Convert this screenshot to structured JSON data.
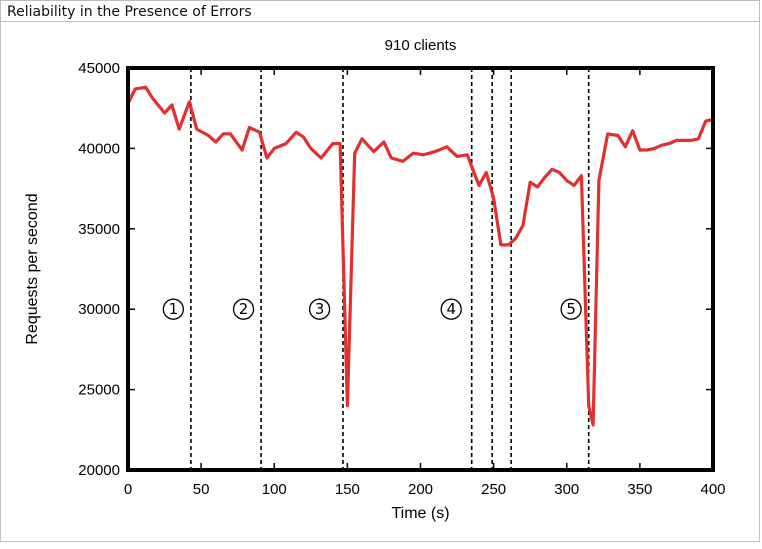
{
  "window": {
    "title": "Reliability in the Presence of Errors"
  },
  "chart_data": {
    "type": "line",
    "title": "910 clients",
    "xlabel": "Time (s)",
    "ylabel": "Requests per second",
    "xlim": [
      0,
      400
    ],
    "ylim": [
      20000,
      45000
    ],
    "xticks": [
      0,
      50,
      100,
      150,
      200,
      250,
      300,
      350,
      400
    ],
    "yticks": [
      20000,
      25000,
      30000,
      35000,
      40000,
      45000
    ],
    "grid": false,
    "series_color": "#e03030",
    "series": [
      {
        "x": [
          0,
          5,
          12,
          17,
          25,
          30,
          35,
          42,
          47,
          55,
          60,
          65,
          70,
          78,
          83,
          90,
          95,
          100,
          108,
          115,
          120,
          125,
          132,
          140,
          145,
          150,
          155,
          160,
          168,
          175,
          180,
          188,
          195,
          202,
          210,
          218,
          225,
          232,
          240,
          245,
          250,
          255,
          260,
          265,
          270,
          275,
          280,
          285,
          290,
          295,
          300,
          305,
          310,
          315,
          318,
          322,
          328,
          335,
          340,
          345,
          350,
          355,
          360,
          365,
          370,
          375,
          380,
          385,
          390,
          395,
          400
        ],
        "y": [
          42800,
          43700,
          43800,
          43100,
          42200,
          42700,
          41200,
          42900,
          41200,
          40800,
          40400,
          40900,
          40900,
          39900,
          41300,
          41000,
          39400,
          40000,
          40300,
          41000,
          40700,
          40000,
          39400,
          40300,
          40300,
          24000,
          39700,
          40600,
          39800,
          40400,
          39400,
          39200,
          39700,
          39600,
          39800,
          40100,
          39500,
          39600,
          37700,
          38500,
          36900,
          34000,
          34000,
          34400,
          35200,
          37900,
          37600,
          38200,
          38700,
          38500,
          38000,
          37700,
          38300,
          24000,
          22800,
          38000,
          40900,
          40800,
          40100,
          41100,
          39900,
          39900,
          40000,
          40200,
          40300,
          40500,
          40500,
          40500,
          40600,
          41700,
          41800
        ]
      }
    ],
    "phase_boundaries": [
      43,
      91,
      147,
      235,
      249,
      262,
      315
    ],
    "phase_labels": [
      {
        "text": "①",
        "x": 31,
        "y": 30000
      },
      {
        "text": "②",
        "x": 79,
        "y": 30000
      },
      {
        "text": "③",
        "x": 131,
        "y": 30000
      },
      {
        "text": "④",
        "x": 221,
        "y": 30000
      },
      {
        "text": "⑤",
        "x": 303,
        "y": 30000
      }
    ]
  }
}
